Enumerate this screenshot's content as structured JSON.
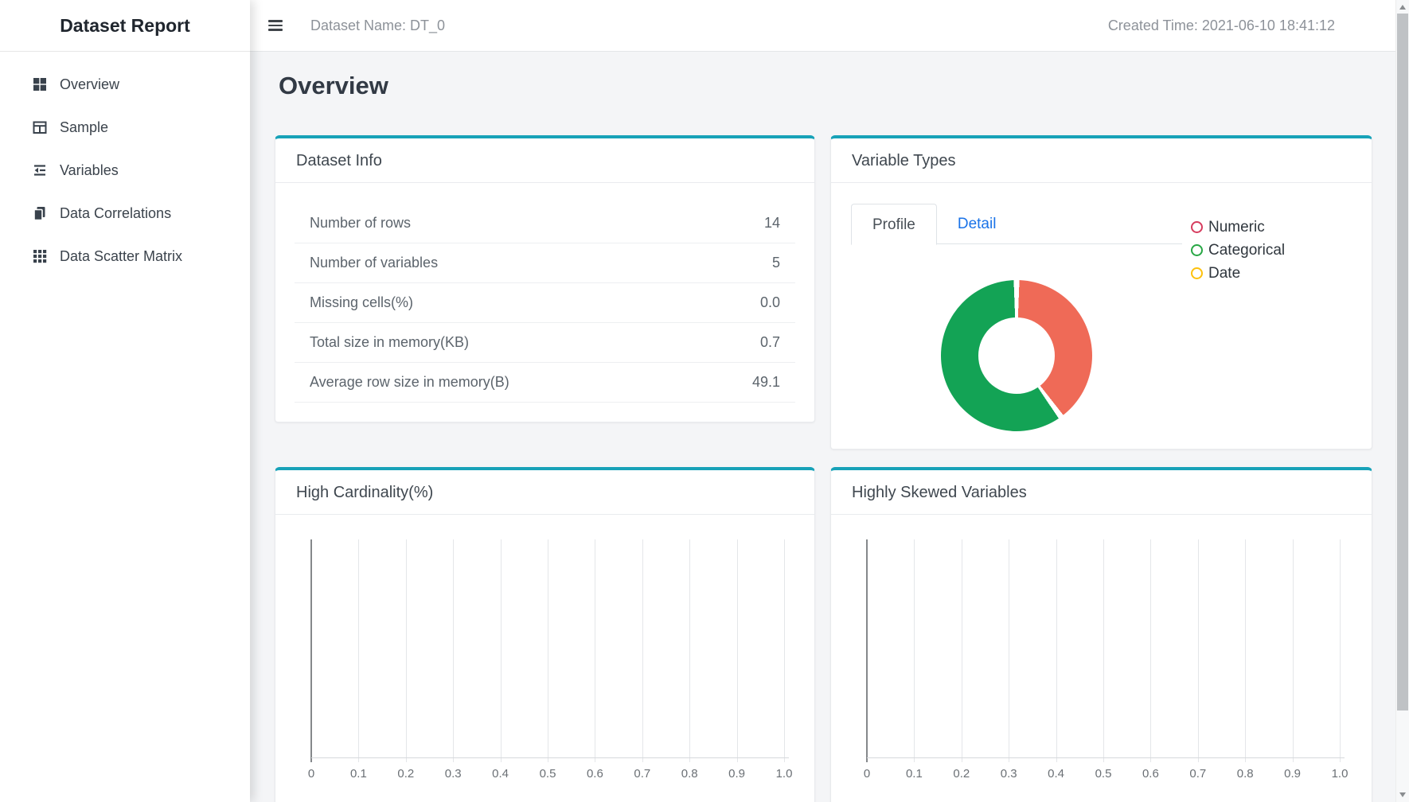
{
  "app": {
    "title": "Dataset Report"
  },
  "sidebar": {
    "items": [
      {
        "icon": "overview-grid-icon",
        "label": "Overview"
      },
      {
        "icon": "sample-table-icon",
        "label": "Sample"
      },
      {
        "icon": "variables-list-icon",
        "label": "Variables"
      },
      {
        "icon": "data-correlations-copy-icon",
        "label": "Data Correlations"
      },
      {
        "icon": "scatter-matrix-grid-icon",
        "label": "Data Scatter Matrix"
      }
    ]
  },
  "header": {
    "dataset_name": "Dataset Name: DT_0",
    "created_time": "Created Time: 2021-06-10 18:41:12"
  },
  "page": {
    "title": "Overview"
  },
  "dataset_info": {
    "title": "Dataset Info",
    "rows": [
      {
        "label": "Number of rows",
        "value": "14"
      },
      {
        "label": "Number of variables",
        "value": "5"
      },
      {
        "label": "Missing cells(%)",
        "value": "0.0"
      },
      {
        "label": "Total size in memory(KB)",
        "value": "0.7"
      },
      {
        "label": "Average row size in memory(B)",
        "value": "49.1"
      }
    ]
  },
  "variable_types": {
    "title": "Variable Types",
    "tabs": [
      {
        "label": "Profile",
        "active": true
      },
      {
        "label": "Detail",
        "active": false
      }
    ],
    "legend": [
      {
        "label": "Numeric",
        "color": "#d63c5e"
      },
      {
        "label": "Categorical",
        "color": "#28a745"
      },
      {
        "label": "Date",
        "color": "#fdc10d"
      }
    ]
  },
  "high_cardinality": {
    "title": "High Cardinality(%)"
  },
  "highly_skewed": {
    "title": "Highly Skewed Variables"
  },
  "chart_data": [
    {
      "type": "pie",
      "subtype": "donut",
      "title": "Variable Types",
      "labels": [
        "Numeric",
        "Categorical",
        "Date"
      ],
      "values": [
        2,
        3,
        0
      ],
      "percentages": [
        40,
        60,
        0
      ],
      "colors": [
        "#ef6a57",
        "#13a355",
        "#fdc10d"
      ],
      "legend_position": "right",
      "start_angle": "top",
      "direction": "clockwise"
    },
    {
      "type": "bar",
      "title": "High Cardinality(%)",
      "orientation": "horizontal",
      "x_ticks": [
        "0",
        "0.1",
        "0.2",
        "0.3",
        "0.4",
        "0.5",
        "0.6",
        "0.7",
        "0.8",
        "0.9",
        "1.0"
      ],
      "xlim": [
        0,
        1
      ],
      "categories": [],
      "values": [],
      "grid": "vertical-gridlines",
      "note": "empty plot - no bars rendered"
    },
    {
      "type": "bar",
      "title": "Highly Skewed Variables",
      "orientation": "horizontal",
      "x_ticks": [
        "0",
        "0.1",
        "0.2",
        "0.3",
        "0.4",
        "0.5",
        "0.6",
        "0.7",
        "0.8",
        "0.9",
        "1.0"
      ],
      "xlim": [
        0,
        1
      ],
      "categories": [],
      "values": [],
      "grid": "vertical-gridlines",
      "note": "empty plot - no bars rendered"
    }
  ],
  "colors": {
    "accent_teal": "#17a2b8",
    "tab_link_blue": "#1a73e8",
    "pie_red": "#ef6a57",
    "pie_green": "#13a355",
    "content_bg": "#f4f5f7"
  }
}
